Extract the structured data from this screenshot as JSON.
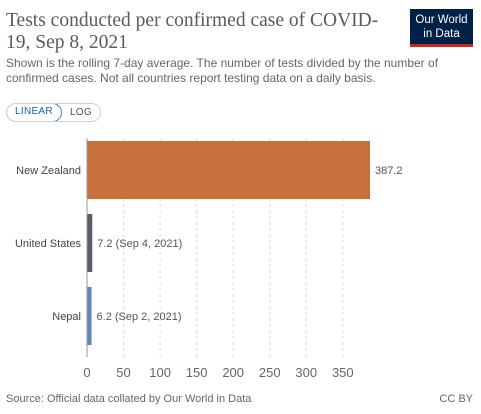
{
  "header": {
    "title": "Tests conducted per confirmed case of COVID-19, Sep 8, 2021",
    "subtitle": "Shown is the rolling 7-day average. The number of tests divided by the number of confirmed cases. Not all countries report testing data on a daily basis.",
    "logo_line1": "Our World",
    "logo_line2": "in Data"
  },
  "controls": {
    "linear_label": "LINEAR",
    "log_label": "LOG",
    "active": "linear"
  },
  "chart_data": {
    "type": "bar",
    "orientation": "horizontal",
    "title": "Tests conducted per confirmed case of COVID-19, Sep 8, 2021",
    "categories": [
      "New Zealand",
      "United States",
      "Nepal"
    ],
    "values": [
      387.2,
      7.2,
      6.2
    ],
    "value_labels": [
      "387.2",
      "7.2 (Sep 4, 2021)",
      "6.2 (Sep 2, 2021)"
    ],
    "colors": [
      "#c8703b",
      "#5b5a66",
      "#5e86b8"
    ],
    "xticks": [
      0,
      50,
      100,
      150,
      200,
      250,
      300,
      350
    ],
    "xlim": [
      0,
      387.2
    ],
    "grid": true,
    "grid_style": "dashed"
  },
  "colors": {
    "axis": "#9a9a9a",
    "grid": "#dddddd",
    "logo_bg": "#002147",
    "logo_accent": "#ce261e"
  },
  "footer": {
    "source": "Source: Official data collated by Our World in Data",
    "license": "CC BY"
  }
}
